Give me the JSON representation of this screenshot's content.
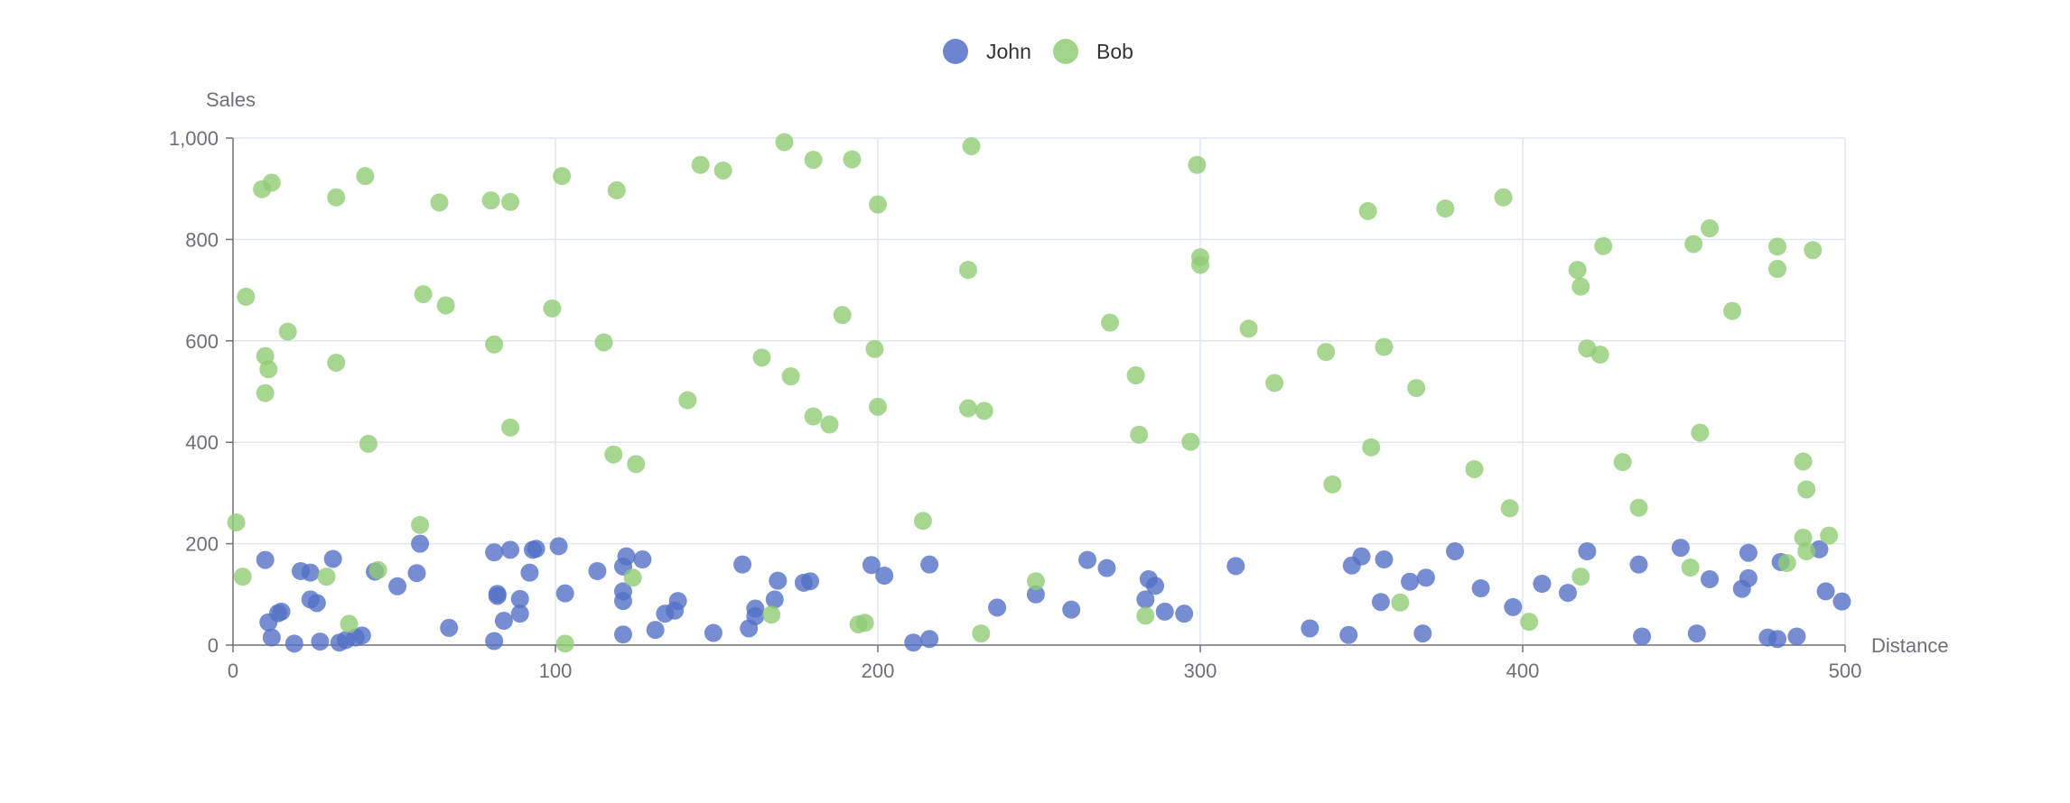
{
  "chart_data": {
    "type": "scatter",
    "title": "",
    "xlabel": "Distance",
    "ylabel": "Sales",
    "xlim": [
      0,
      500
    ],
    "ylim": [
      0,
      1000
    ],
    "x_ticks": [
      "0",
      "100",
      "200",
      "300",
      "400",
      "500"
    ],
    "y_ticks": [
      "0",
      "200",
      "400",
      "600",
      "800",
      "1,000"
    ],
    "grid": true,
    "legend_position": "top-center",
    "series": [
      {
        "name": "John",
        "color": "#5470c6",
        "points": [
          [
            10,
            168
          ],
          [
            11,
            45
          ],
          [
            12,
            15
          ],
          [
            14,
            63
          ],
          [
            15,
            66
          ],
          [
            19,
            3
          ],
          [
            21,
            146
          ],
          [
            24,
            143
          ],
          [
            24,
            90
          ],
          [
            26,
            83
          ],
          [
            27,
            7
          ],
          [
            31,
            170
          ],
          [
            33,
            5
          ],
          [
            35,
            10
          ],
          [
            38,
            15
          ],
          [
            40,
            19
          ],
          [
            44,
            145
          ],
          [
            51,
            116
          ],
          [
            57,
            142
          ],
          [
            58,
            200
          ],
          [
            67,
            34
          ],
          [
            81,
            183
          ],
          [
            81,
            8
          ],
          [
            82,
            97
          ],
          [
            82,
            101
          ],
          [
            84,
            48
          ],
          [
            86,
            188
          ],
          [
            89,
            91
          ],
          [
            89,
            62
          ],
          [
            92,
            143
          ],
          [
            93,
            188
          ],
          [
            94,
            190
          ],
          [
            101,
            195
          ],
          [
            103,
            102
          ],
          [
            113,
            146
          ],
          [
            121,
            106
          ],
          [
            121,
            87
          ],
          [
            121,
            155
          ],
          [
            122,
            175
          ],
          [
            121,
            21
          ],
          [
            127,
            169
          ],
          [
            131,
            30
          ],
          [
            134,
            62
          ],
          [
            137,
            68
          ],
          [
            138,
            87
          ],
          [
            149,
            24
          ],
          [
            158,
            159
          ],
          [
            160,
            33
          ],
          [
            162,
            72
          ],
          [
            162,
            57
          ],
          [
            168,
            90
          ],
          [
            169,
            127
          ],
          [
            177,
            123
          ],
          [
            179,
            126
          ],
          [
            198,
            158
          ],
          [
            202,
            137
          ],
          [
            211,
            5
          ],
          [
            216,
            12
          ],
          [
            216,
            159
          ],
          [
            237,
            74
          ],
          [
            249,
            100
          ],
          [
            260,
            70
          ],
          [
            265,
            168
          ],
          [
            271,
            152
          ],
          [
            283,
            90
          ],
          [
            284,
            130
          ],
          [
            286,
            117
          ],
          [
            289,
            66
          ],
          [
            295,
            62
          ],
          [
            311,
            156
          ],
          [
            334,
            33
          ],
          [
            346,
            20
          ],
          [
            347,
            157
          ],
          [
            350,
            175
          ],
          [
            356,
            85
          ],
          [
            357,
            169
          ],
          [
            365,
            125
          ],
          [
            369,
            23
          ],
          [
            370,
            133
          ],
          [
            379,
            185
          ],
          [
            387,
            112
          ],
          [
            397,
            75
          ],
          [
            406,
            121
          ],
          [
            414,
            103
          ],
          [
            420,
            185
          ],
          [
            436,
            159
          ],
          [
            437,
            17
          ],
          [
            449,
            192
          ],
          [
            454,
            23
          ],
          [
            458,
            130
          ],
          [
            468,
            111
          ],
          [
            470,
            132
          ],
          [
            470,
            182
          ],
          [
            476,
            15
          ],
          [
            479,
            12
          ],
          [
            480,
            164
          ],
          [
            485,
            17
          ],
          [
            492,
            189
          ],
          [
            494,
            106
          ],
          [
            499,
            86
          ]
        ]
      },
      {
        "name": "Bob",
        "color": "#91cc75",
        "points": [
          [
            1,
            242
          ],
          [
            3,
            135
          ],
          [
            4,
            687
          ],
          [
            9,
            899
          ],
          [
            10,
            570
          ],
          [
            10,
            497
          ],
          [
            11,
            544
          ],
          [
            12,
            912
          ],
          [
            17,
            618
          ],
          [
            29,
            135
          ],
          [
            32,
            557
          ],
          [
            32,
            883
          ],
          [
            36,
            42
          ],
          [
            41,
            925
          ],
          [
            42,
            397
          ],
          [
            45,
            148
          ],
          [
            58,
            237
          ],
          [
            59,
            692
          ],
          [
            64,
            873
          ],
          [
            66,
            670
          ],
          [
            80,
            877
          ],
          [
            81,
            593
          ],
          [
            86,
            874
          ],
          [
            86,
            429
          ],
          [
            99,
            664
          ],
          [
            102,
            925
          ],
          [
            103,
            3
          ],
          [
            115,
            597
          ],
          [
            118,
            376
          ],
          [
            119,
            897
          ],
          [
            124,
            133
          ],
          [
            125,
            357
          ],
          [
            141,
            483
          ],
          [
            145,
            947
          ],
          [
            152,
            936
          ],
          [
            164,
            567
          ],
          [
            167,
            60
          ],
          [
            171,
            992
          ],
          [
            173,
            530
          ],
          [
            180,
            451
          ],
          [
            180,
            957
          ],
          [
            185,
            435
          ],
          [
            189,
            651
          ],
          [
            192,
            958
          ],
          [
            194,
            41
          ],
          [
            196,
            44
          ],
          [
            199,
            584
          ],
          [
            200,
            470
          ],
          [
            200,
            869
          ],
          [
            214,
            245
          ],
          [
            228,
            467
          ],
          [
            228,
            740
          ],
          [
            229,
            984
          ],
          [
            233,
            462
          ],
          [
            232,
            23
          ],
          [
            249,
            126
          ],
          [
            272,
            636
          ],
          [
            280,
            532
          ],
          [
            281,
            415
          ],
          [
            283,
            58
          ],
          [
            297,
            401
          ],
          [
            299,
            947
          ],
          [
            300,
            765
          ],
          [
            300,
            750
          ],
          [
            315,
            624
          ],
          [
            323,
            517
          ],
          [
            339,
            578
          ],
          [
            341,
            317
          ],
          [
            352,
            856
          ],
          [
            353,
            390
          ],
          [
            357,
            588
          ],
          [
            362,
            84
          ],
          [
            367,
            507
          ],
          [
            376,
            861
          ],
          [
            385,
            347
          ],
          [
            394,
            883
          ],
          [
            396,
            270
          ],
          [
            402,
            46
          ],
          [
            417,
            740
          ],
          [
            418,
            135
          ],
          [
            418,
            707
          ],
          [
            420,
            585
          ],
          [
            424,
            573
          ],
          [
            425,
            787
          ],
          [
            431,
            361
          ],
          [
            436,
            271
          ],
          [
            452,
            153
          ],
          [
            453,
            791
          ],
          [
            455,
            419
          ],
          [
            458,
            822
          ],
          [
            465,
            659
          ],
          [
            479,
            742
          ],
          [
            479,
            786
          ],
          [
            482,
            162
          ],
          [
            487,
            212
          ],
          [
            487,
            362
          ],
          [
            488,
            185
          ],
          [
            488,
            307
          ],
          [
            490,
            779
          ],
          [
            495,
            216
          ]
        ]
      }
    ]
  }
}
